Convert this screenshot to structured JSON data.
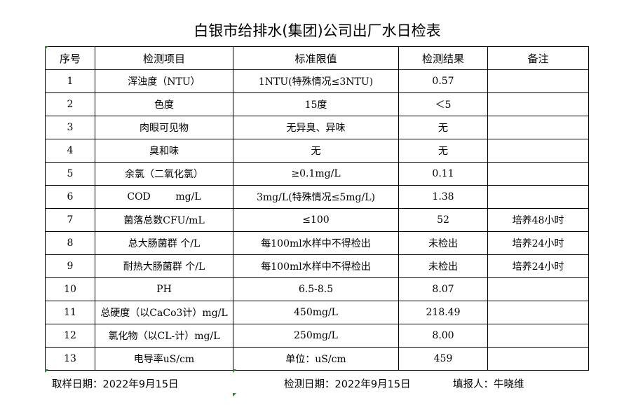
{
  "title": "白银市给排水(集团)公司出厂水日检表",
  "headers": [
    "序号",
    "检测项目",
    "标准限值",
    "检测结果",
    "备注"
  ],
  "rows": [
    [
      "1",
      "浑浊度（NTU）",
      "1NTU(特殊情况≤3NTU)",
      "0.57",
      ""
    ],
    [
      "2",
      "色度",
      "15度",
      "＜5",
      ""
    ],
    [
      "3",
      "肉眼可见物",
      "无异臭、异味",
      "无",
      ""
    ],
    [
      "4",
      "臭和味",
      "无",
      "无",
      ""
    ],
    [
      "5",
      "余氯（二氧化氯）",
      "≥0.1mg/L",
      "0.11",
      ""
    ],
    [
      "6",
      "COD        mg/L",
      "3mg/L(特殊情况≤5mg/L)",
      "1.38",
      ""
    ],
    [
      "7",
      "菌落总数CFU/mL",
      "≤100",
      "52",
      "培养48小时"
    ],
    [
      "8",
      "总大肠菌群 个/L",
      "每100ml水样中不得检出",
      "未检出",
      "培养24小时"
    ],
    [
      "9",
      "耐热大肠菌群 个/L",
      "每100ml水样中不得检出",
      "未检出",
      "培养24小时"
    ],
    [
      "10",
      "PH",
      "6.5-8.5",
      "8.07",
      ""
    ],
    [
      "11",
      "总硬度（以CaCo3计）mg/L",
      "450mg/L",
      "218.49",
      ""
    ],
    [
      "12",
      "氯化物（以CL-计）mg/L",
      "250mg/L",
      "8.00",
      ""
    ],
    [
      "13",
      "电导率uS/cm",
      "单位：uS/cm",
      "459",
      ""
    ]
  ],
  "footer": {
    "sampling_date": "取样日期：2022年9月15日",
    "test_date": "检测日期：2022年9月15日",
    "reporter": "填报人：牛晓维"
  },
  "colors": {
    "cell_marker": "#2e7d32"
  }
}
